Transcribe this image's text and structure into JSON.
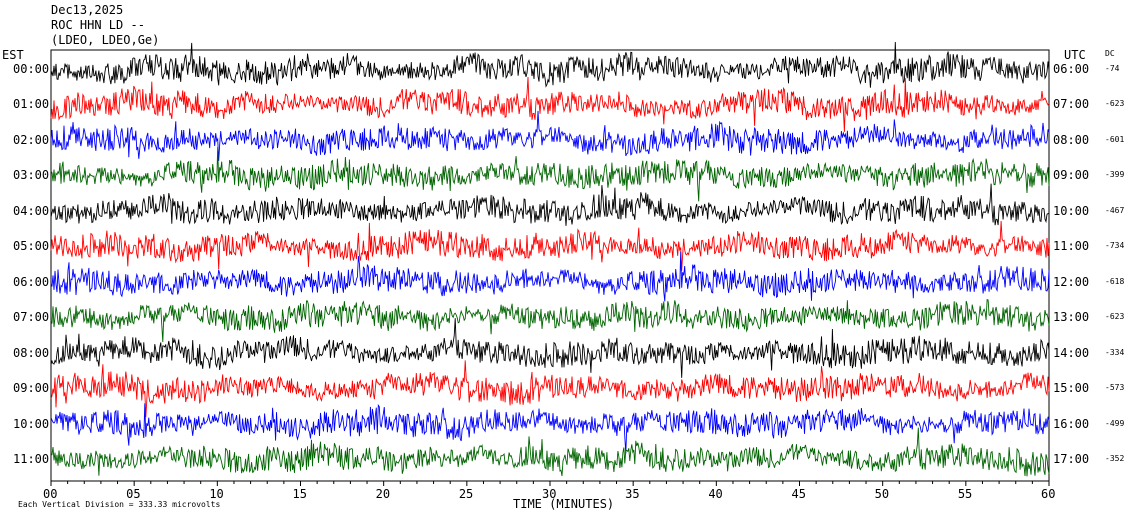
{
  "header": {
    "date": "Dec13,2025",
    "station": "ROC HHN LD --",
    "network": "(LDEO, LDEO,Ge)"
  },
  "left_zone": "EST",
  "right_zone": "UTC",
  "dc_heading": "DC",
  "footer": {
    "scale_note": "Each Vertical Division =  333.33 microvolts"
  },
  "chart_data": {
    "type": "line",
    "title": "",
    "xlabel": "TIME (MINUTES)",
    "ylabel": "",
    "xlim": [
      0,
      60
    ],
    "x_ticks": [
      "00",
      "05",
      "10",
      "15",
      "20",
      "25",
      "30",
      "35",
      "40",
      "45",
      "50",
      "55",
      "60"
    ],
    "colors": [
      "#000000",
      "#ff0000",
      "#0000ff",
      "#006400"
    ],
    "series": [
      {
        "local": "00:00",
        "utc": "06:00",
        "dc": "-74"
      },
      {
        "local": "01:00",
        "utc": "07:00",
        "dc": "-623"
      },
      {
        "local": "02:00",
        "utc": "08:00",
        "dc": "-601"
      },
      {
        "local": "03:00",
        "utc": "09:00",
        "dc": "-399"
      },
      {
        "local": "04:00",
        "utc": "10:00",
        "dc": "-467"
      },
      {
        "local": "05:00",
        "utc": "11:00",
        "dc": "-734"
      },
      {
        "local": "06:00",
        "utc": "12:00",
        "dc": "-618"
      },
      {
        "local": "07:00",
        "utc": "13:00",
        "dc": "-623"
      },
      {
        "local": "08:00",
        "utc": "14:00",
        "dc": "-334"
      },
      {
        "local": "09:00",
        "utc": "15:00",
        "dc": "-573"
      },
      {
        "local": "10:00",
        "utc": "16:00",
        "dc": "-499"
      },
      {
        "local": "11:00",
        "utc": "17:00",
        "dc": "-352"
      }
    ]
  }
}
